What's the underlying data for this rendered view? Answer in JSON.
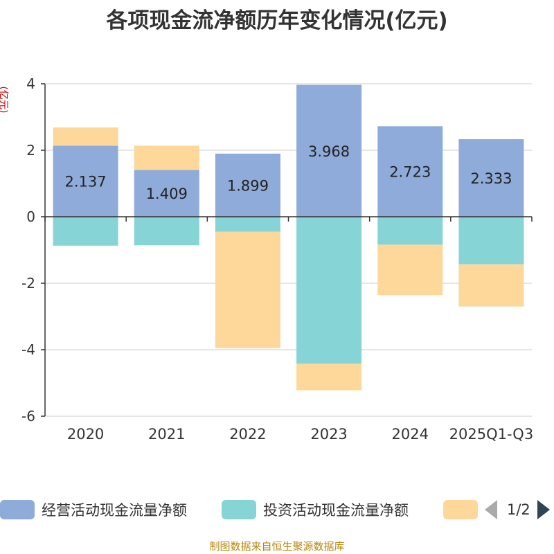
{
  "chart_data": {
    "type": "bar",
    "stacked": true,
    "title": "各项现金流净额历年变化情况(亿元)",
    "ylabel": "(亿元)",
    "ylim": [
      -6,
      4
    ],
    "yticks": [
      4,
      2,
      0,
      -2,
      -4,
      -6
    ],
    "grid": true,
    "categories": [
      "2020",
      "2021",
      "2022",
      "2023",
      "2024",
      "2025Q1-Q3"
    ],
    "series": [
      {
        "name": "经营活动现金流量净额",
        "color": "#8eabd9",
        "values": [
          2.137,
          1.409,
          1.899,
          3.968,
          2.723,
          2.333
        ],
        "labels": [
          "2.137",
          "1.409",
          "1.899",
          "3.968",
          "2.723",
          "2.333"
        ]
      },
      {
        "name": "投资活动现金流量净额",
        "color": "#86d4d6",
        "values": [
          -0.87,
          -0.86,
          -0.45,
          -4.42,
          -0.84,
          -1.43
        ]
      },
      {
        "name": "",
        "color": "#fdd89a",
        "values": [
          0.55,
          0.73,
          -3.5,
          -0.8,
          -1.52,
          -1.27
        ]
      }
    ]
  },
  "legend": {
    "pager": "1/2"
  },
  "source": "制图数据来自恒生聚源数据库"
}
